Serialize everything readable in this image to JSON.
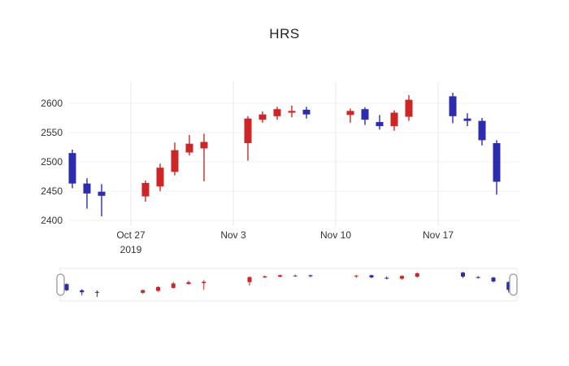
{
  "page": {
    "background": "#ffffff"
  },
  "chart_data": {
    "type": "candlestick",
    "title": "HRS",
    "increasing_color": "#cd2626",
    "decreasing_color": "#2c2cae",
    "grid_color": "#e8e8e8",
    "y_ticks": [
      2400,
      2450,
      2500,
      2550,
      2600
    ],
    "y_range": [
      2390,
      2637
    ],
    "x_ticks": [
      {
        "date": "2019-10-27",
        "label": "Oct 27",
        "sublabel": "2019"
      },
      {
        "date": "2019-11-03",
        "label": "Nov 3"
      },
      {
        "date": "2019-11-10",
        "label": "Nov 10"
      },
      {
        "date": "2019-11-17",
        "label": "Nov 17"
      }
    ],
    "rangeslider": true,
    "candles": [
      {
        "date": "2019-10-23",
        "open": 2515,
        "high": 2521,
        "low": 2455,
        "close": 2463
      },
      {
        "date": "2019-10-24",
        "open": 2463,
        "high": 2472,
        "low": 2420,
        "close": 2446
      },
      {
        "date": "2019-10-25",
        "open": 2449,
        "high": 2462,
        "low": 2407,
        "close": 2442
      },
      {
        "date": "2019-10-28",
        "open": 2441,
        "high": 2468,
        "low": 2432,
        "close": 2464
      },
      {
        "date": "2019-10-29",
        "open": 2458,
        "high": 2497,
        "low": 2450,
        "close": 2490
      },
      {
        "date": "2019-10-30",
        "open": 2483,
        "high": 2533,
        "low": 2477,
        "close": 2520
      },
      {
        "date": "2019-10-31",
        "open": 2516,
        "high": 2546,
        "low": 2511,
        "close": 2531
      },
      {
        "date": "2019-11-01",
        "open": 2523,
        "high": 2548,
        "low": 2467,
        "close": 2534
      },
      {
        "date": "2019-11-04",
        "open": 2532,
        "high": 2578,
        "low": 2502,
        "close": 2574
      },
      {
        "date": "2019-11-05",
        "open": 2572,
        "high": 2586,
        "low": 2567,
        "close": 2581
      },
      {
        "date": "2019-11-06",
        "open": 2578,
        "high": 2594,
        "low": 2572,
        "close": 2590
      },
      {
        "date": "2019-11-07",
        "open": 2584,
        "high": 2596,
        "low": 2576,
        "close": 2587
      },
      {
        "date": "2019-11-08",
        "open": 2589,
        "high": 2594,
        "low": 2574,
        "close": 2581
      },
      {
        "date": "2019-11-11",
        "open": 2580,
        "high": 2591,
        "low": 2567,
        "close": 2587
      },
      {
        "date": "2019-11-12",
        "open": 2590,
        "high": 2593,
        "low": 2563,
        "close": 2572
      },
      {
        "date": "2019-11-13",
        "open": 2568,
        "high": 2580,
        "low": 2555,
        "close": 2561
      },
      {
        "date": "2019-11-14",
        "open": 2561,
        "high": 2588,
        "low": 2553,
        "close": 2584
      },
      {
        "date": "2019-11-15",
        "open": 2577,
        "high": 2614,
        "low": 2570,
        "close": 2606
      },
      {
        "date": "2019-11-18",
        "open": 2612,
        "high": 2618,
        "low": 2566,
        "close": 2578
      },
      {
        "date": "2019-11-19",
        "open": 2574,
        "high": 2583,
        "low": 2561,
        "close": 2570
      },
      {
        "date": "2019-11-20",
        "open": 2570,
        "high": 2575,
        "low": 2528,
        "close": 2537
      },
      {
        "date": "2019-11-21",
        "open": 2532,
        "high": 2537,
        "low": 2444,
        "close": 2466
      }
    ]
  }
}
